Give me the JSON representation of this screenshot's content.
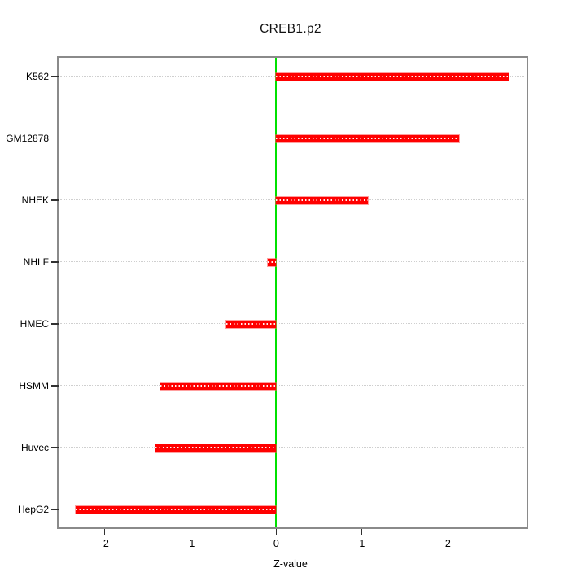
{
  "title": "CREB1.p2",
  "chart_data": {
    "type": "bar",
    "orientation": "horizontal",
    "title": "CREB1.p2",
    "xlabel": "Z-value",
    "ylabel": "",
    "categories": [
      "K562",
      "GM12878",
      "NHEK",
      "NHLF",
      "HMEC",
      "HSMM",
      "Huvec",
      "HepG2"
    ],
    "values": [
      2.71,
      2.13,
      1.07,
      -0.1,
      -0.58,
      -1.35,
      -1.41,
      -2.33
    ],
    "x_ticks": [
      "-2",
      "-1",
      "0",
      "1",
      "2"
    ],
    "x_tick_values": [
      -2,
      -1,
      0,
      1,
      2
    ],
    "xlim": [
      -2.53,
      2.92
    ],
    "grid": "horizontal-dotted",
    "legend": "none",
    "zero_reference_line": 0
  },
  "colors": {
    "bar": "#ff0000",
    "zero_line": "#00e100",
    "plot_border": "#8a8a8a",
    "gridline": "#cfcfcf",
    "text": "#000000",
    "background": "#ffffff"
  }
}
